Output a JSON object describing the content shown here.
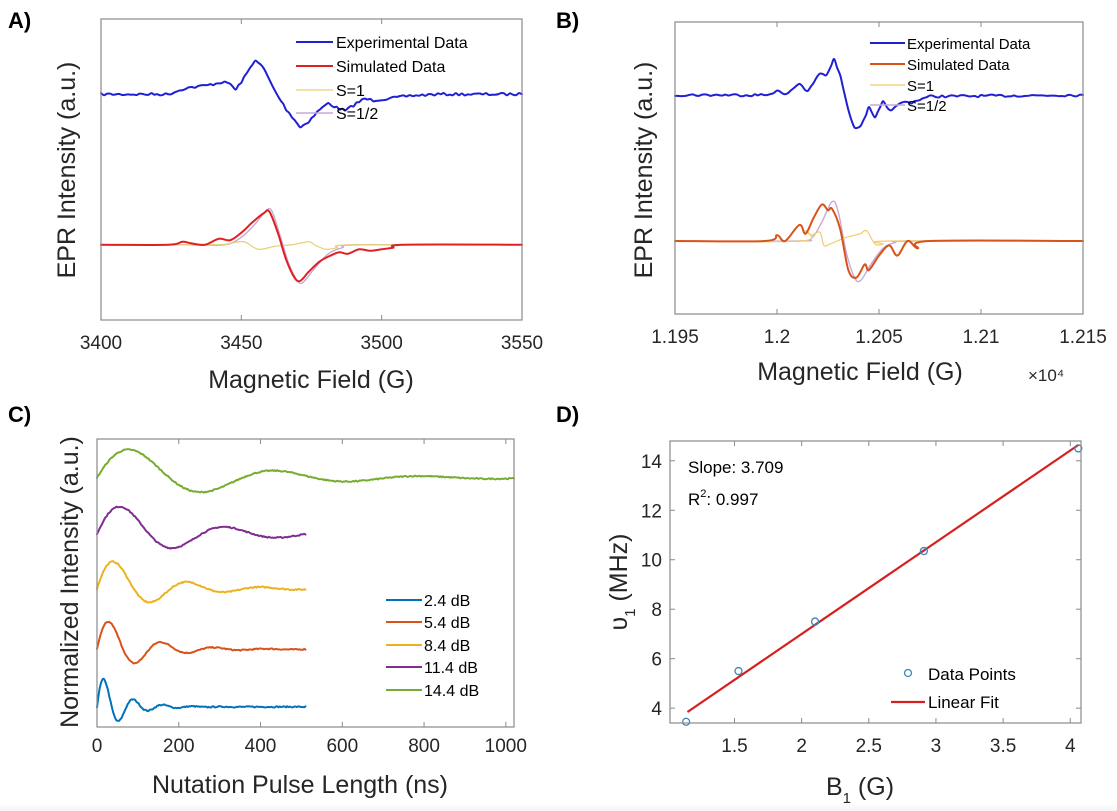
{
  "chart_data": [
    {
      "id": "A",
      "panel_label": "A)",
      "type": "line",
      "xlabel": "Magnetic Field (G)",
      "ylabel": "EPR Intensity (a.u.)",
      "xlim": [
        3400,
        3550
      ],
      "ylim": [
        -1.0,
        1.0
      ],
      "xticks": [
        3400,
        3450,
        3500,
        3550
      ],
      "xtick_labels": [
        "3400",
        "3450",
        "3500",
        "3550"
      ],
      "x_multiplier": "",
      "legend": {
        "placement": "top-right",
        "entries": [
          "Experimental Data",
          "Simulated Data",
          "S=1",
          "S=1/2"
        ]
      },
      "series": [
        {
          "name": "Experimental Data",
          "color": "#1f1fd6",
          "width": 2,
          "noise": 0.008,
          "baseline": 0.5,
          "points": [
            [
              3400,
              0.5
            ],
            [
              3418,
              0.5
            ],
            [
              3424,
              0.5
            ],
            [
              3430,
              0.54
            ],
            [
              3438,
              0.56
            ],
            [
              3443,
              0.58
            ],
            [
              3446,
              0.57
            ],
            [
              3448,
              0.53
            ],
            [
              3451,
              0.61
            ],
            [
              3455,
              0.73
            ],
            [
              3458,
              0.67
            ],
            [
              3462,
              0.52
            ],
            [
              3466,
              0.4
            ],
            [
              3469,
              0.33
            ],
            [
              3471,
              0.28
            ],
            [
              3474,
              0.32
            ],
            [
              3478,
              0.4
            ],
            [
              3481,
              0.44
            ],
            [
              3484,
              0.41
            ],
            [
              3487,
              0.39
            ],
            [
              3491,
              0.44
            ],
            [
              3494,
              0.47
            ],
            [
              3497,
              0.46
            ],
            [
              3502,
              0.47
            ],
            [
              3510,
              0.49
            ],
            [
              3520,
              0.5
            ],
            [
              3550,
              0.5
            ]
          ]
        },
        {
          "name": "Simulated Data",
          "color": "#e02020",
          "width": 2,
          "noise": 0,
          "points": [
            [
              3400,
              -0.5
            ],
            [
              3424,
              -0.5
            ],
            [
              3429,
              -0.48
            ],
            [
              3432,
              -0.49
            ],
            [
              3437,
              -0.5
            ],
            [
              3442,
              -0.46
            ],
            [
              3446,
              -0.47
            ],
            [
              3450,
              -0.42
            ],
            [
              3454,
              -0.35
            ],
            [
              3458,
              -0.29
            ],
            [
              3460,
              -0.28
            ],
            [
              3463,
              -0.42
            ],
            [
              3466,
              -0.6
            ],
            [
              3469,
              -0.72
            ],
            [
              3471,
              -0.74
            ],
            [
              3474,
              -0.68
            ],
            [
              3478,
              -0.61
            ],
            [
              3482,
              -0.57
            ],
            [
              3485,
              -0.55
            ],
            [
              3488,
              -0.56
            ],
            [
              3492,
              -0.53
            ],
            [
              3496,
              -0.54
            ],
            [
              3500,
              -0.53
            ],
            [
              3504,
              -0.52
            ],
            [
              3508,
              -0.5
            ],
            [
              3550,
              -0.5
            ]
          ]
        },
        {
          "name": "S=1",
          "color": "#e8cf7a",
          "width": 1.2,
          "noise": 0,
          "points": [
            [
              3400,
              -0.5
            ],
            [
              3440,
              -0.5
            ],
            [
              3446,
              -0.49
            ],
            [
              3451,
              -0.48
            ],
            [
              3456,
              -0.53
            ],
            [
              3462,
              -0.51
            ],
            [
              3468,
              -0.5
            ],
            [
              3474,
              -0.48
            ],
            [
              3476,
              -0.5
            ],
            [
              3480,
              -0.53
            ],
            [
              3484,
              -0.52
            ],
            [
              3490,
              -0.5
            ],
            [
              3550,
              -0.5
            ]
          ]
        },
        {
          "name": "S=1/2",
          "color": "#c9a8d6",
          "width": 1.4,
          "noise": 0,
          "points": [
            [
              3400,
              -0.5
            ],
            [
              3430,
              -0.5
            ],
            [
              3444,
              -0.5
            ],
            [
              3450,
              -0.45
            ],
            [
              3455,
              -0.36
            ],
            [
              3459,
              -0.27
            ],
            [
              3461,
              -0.28
            ],
            [
              3464,
              -0.45
            ],
            [
              3467,
              -0.63
            ],
            [
              3470,
              -0.74
            ],
            [
              3472,
              -0.75
            ],
            [
              3476,
              -0.66
            ],
            [
              3481,
              -0.56
            ],
            [
              3486,
              -0.52
            ],
            [
              3492,
              -0.5
            ],
            [
              3550,
              -0.5
            ]
          ]
        }
      ]
    },
    {
      "id": "B",
      "panel_label": "B)",
      "type": "line",
      "xlabel": "Magnetic Field (G)",
      "ylabel": "EPR Intensity (a.u.)",
      "xlim": [
        1.195,
        1.215
      ],
      "ylim": [
        -1.0,
        1.0
      ],
      "xticks": [
        1.195,
        1.2,
        1.205,
        1.21,
        1.215
      ],
      "xtick_labels": [
        "1.195",
        "1.2",
        "1.205",
        "1.21",
        "1.215"
      ],
      "x_multiplier": "×10⁴",
      "legend": {
        "placement": "top-right",
        "entries": [
          "Experimental Data",
          "Simulated Data",
          "S=1",
          "S=1/2"
        ]
      },
      "series": [
        {
          "name": "Experimental Data",
          "color": "#1f1fd6",
          "width": 2,
          "noise": 0.008,
          "baseline": 0.5,
          "points": [
            [
              1.195,
              0.5
            ],
            [
              1.1995,
              0.5
            ],
            [
              1.2,
              0.53
            ],
            [
              1.2004,
              0.5
            ],
            [
              1.2011,
              0.58
            ],
            [
              1.2015,
              0.52
            ],
            [
              1.2021,
              0.65
            ],
            [
              1.2024,
              0.63
            ],
            [
              1.2028,
              0.74
            ],
            [
              1.2031,
              0.64
            ],
            [
              1.2035,
              0.4
            ],
            [
              1.2038,
              0.27
            ],
            [
              1.2041,
              0.29
            ],
            [
              1.2045,
              0.41
            ],
            [
              1.2048,
              0.34
            ],
            [
              1.2052,
              0.45
            ],
            [
              1.2056,
              0.39
            ],
            [
              1.2061,
              0.45
            ],
            [
              1.2066,
              0.45
            ],
            [
              1.207,
              0.47
            ],
            [
              1.2075,
              0.49
            ],
            [
              1.215,
              0.5
            ]
          ]
        },
        {
          "name": "Simulated Data",
          "color": "#d95319",
          "width": 2,
          "noise": 0,
          "points": [
            [
              1.195,
              -0.5
            ],
            [
              1.1994,
              -0.5
            ],
            [
              1.2,
              -0.46
            ],
            [
              1.2004,
              -0.5
            ],
            [
              1.2011,
              -0.39
            ],
            [
              1.2014,
              -0.45
            ],
            [
              1.2018,
              -0.34
            ],
            [
              1.2022,
              -0.25
            ],
            [
              1.2025,
              -0.29
            ],
            [
              1.2027,
              -0.28
            ],
            [
              1.2031,
              -0.42
            ],
            [
              1.2035,
              -0.7
            ],
            [
              1.2039,
              -0.75
            ],
            [
              1.2043,
              -0.66
            ],
            [
              1.2045,
              -0.7
            ],
            [
              1.205,
              -0.6
            ],
            [
              1.2055,
              -0.53
            ],
            [
              1.2059,
              -0.6
            ],
            [
              1.2064,
              -0.5
            ],
            [
              1.2069,
              -0.55
            ],
            [
              1.2075,
              -0.5
            ],
            [
              1.215,
              -0.5
            ]
          ]
        },
        {
          "name": "S=1",
          "color": "#f0cc6a",
          "width": 1.2,
          "noise": 0,
          "points": [
            [
              1.195,
              -0.5
            ],
            [
              1.2012,
              -0.5
            ],
            [
              1.2014,
              -0.43
            ],
            [
              1.2017,
              -0.46
            ],
            [
              1.2021,
              -0.44
            ],
            [
              1.2023,
              -0.53
            ],
            [
              1.2026,
              -0.52
            ],
            [
              1.2033,
              -0.48
            ],
            [
              1.2038,
              -0.46
            ],
            [
              1.2041,
              -0.45
            ],
            [
              1.2044,
              -0.43
            ],
            [
              1.2048,
              -0.52
            ],
            [
              1.2052,
              -0.52
            ],
            [
              1.2056,
              -0.5
            ],
            [
              1.215,
              -0.5
            ]
          ]
        },
        {
          "name": "S=1/2",
          "color": "#c9a8d6",
          "width": 1.4,
          "noise": 0,
          "points": [
            [
              1.195,
              -0.5
            ],
            [
              1.201,
              -0.5
            ],
            [
              1.2017,
              -0.48
            ],
            [
              1.2022,
              -0.37
            ],
            [
              1.2027,
              -0.23
            ],
            [
              1.203,
              -0.3
            ],
            [
              1.2034,
              -0.58
            ],
            [
              1.2038,
              -0.75
            ],
            [
              1.2041,
              -0.77
            ],
            [
              1.2046,
              -0.66
            ],
            [
              1.2052,
              -0.55
            ],
            [
              1.2058,
              -0.51
            ],
            [
              1.2065,
              -0.5
            ],
            [
              1.215,
              -0.5
            ]
          ]
        }
      ]
    },
    {
      "id": "C",
      "panel_label": "C)",
      "type": "line",
      "xlabel": "Nutation Pulse Length (ns)",
      "ylabel": "Normalized Intensity (a.u.)",
      "xlim": [
        0,
        1020
      ],
      "ylim": [
        0,
        10
      ],
      "xticks": [
        0,
        200,
        400,
        600,
        800,
        1000
      ],
      "xtick_labels": [
        "0",
        "200",
        "400",
        "600",
        "800",
        "1000"
      ],
      "legend": {
        "placement": "bottom-right",
        "entries": [
          "2.4 dB",
          "5.4 dB",
          "8.4 dB",
          "11.4 dB",
          "14.4 dB"
        ]
      },
      "series": [
        {
          "name": "2.4 dB",
          "color": "#0072bd",
          "offset": 0.7,
          "amplitude": 1.3,
          "period_ns": 72,
          "decay_ns": 55,
          "xmax": 510
        },
        {
          "name": "5.4 dB",
          "color": "#d95319",
          "offset": 2.7,
          "amplitude": 1.3,
          "period_ns": 128,
          "decay_ns": 95,
          "xmax": 510
        },
        {
          "name": "8.4 dB",
          "color": "#edb120",
          "offset": 4.8,
          "amplitude": 1.3,
          "period_ns": 180,
          "decay_ns": 130,
          "xmax": 510
        },
        {
          "name": "11.4 dB",
          "color": "#7e2f8e",
          "offset": 6.7,
          "amplitude": 1.3,
          "period_ns": 255,
          "decay_ns": 190,
          "xmax": 510
        },
        {
          "name": "14.4 dB",
          "color": "#77ac30",
          "offset": 8.65,
          "amplitude": 1.35,
          "period_ns": 355,
          "decay_ns": 260,
          "xmax": 1020
        }
      ]
    },
    {
      "id": "D",
      "panel_label": "D)",
      "type": "scatter",
      "xlabel": "B",
      "xlabel_sub": "1",
      "xlabel_unit": " (G)",
      "ylabel": "υ",
      "ylabel_sub": "1",
      "ylabel_unit": " (MHz)",
      "xlim": [
        1.02,
        4.08
      ],
      "ylim": [
        3.4,
        14.8
      ],
      "xticks": [
        1.5,
        2,
        2.5,
        3,
        3.5,
        4
      ],
      "xtick_labels": [
        "1.5",
        "2",
        "2.5",
        "3",
        "3.5",
        "4"
      ],
      "yticks": [
        4,
        6,
        8,
        10,
        12,
        14
      ],
      "ytick_labels": [
        "4",
        "6",
        "8",
        "10",
        "12",
        "14"
      ],
      "annotations": {
        "slope": "Slope: 3.709",
        "r2_prefix": "R",
        "r2_sup": "2",
        "r2_value": ": 0.997"
      },
      "legend": {
        "placement": "bottom-right",
        "entries": [
          "Data Points",
          "Linear Fit"
        ]
      },
      "points": {
        "name": "Data Points",
        "color": "#3b87b7",
        "x": [
          1.14,
          1.53,
          2.1,
          2.91,
          4.06
        ],
        "y": [
          3.45,
          5.5,
          7.5,
          10.35,
          14.5
        ]
      },
      "fit": {
        "name": "Linear Fit",
        "color": "#d62020",
        "slope": 3.709,
        "intercept": -0.42,
        "x_range": [
          1.15,
          4.06
        ]
      }
    }
  ]
}
